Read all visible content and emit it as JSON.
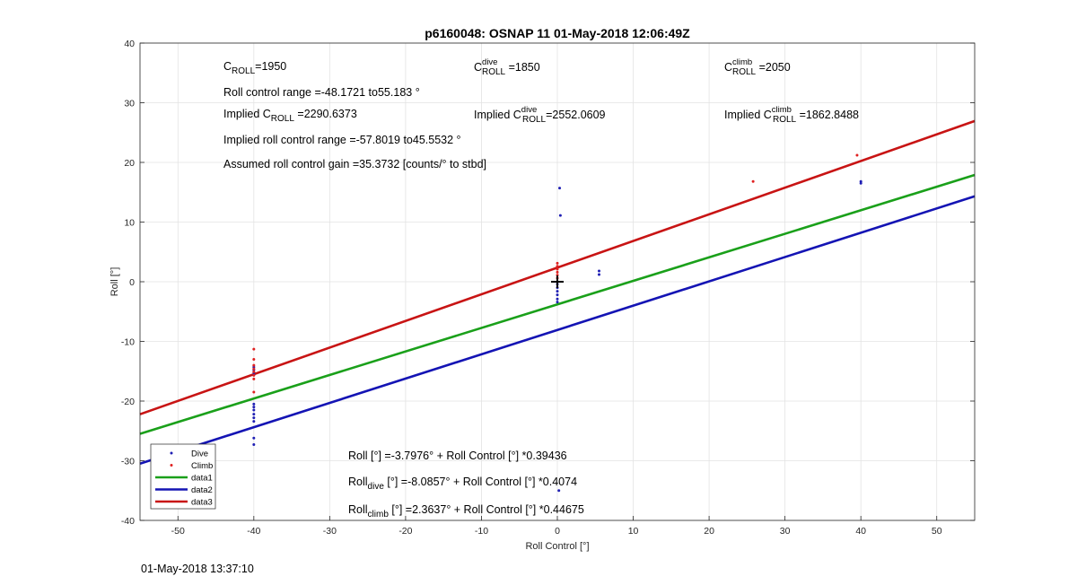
{
  "chart_data": {
    "type": "scatter",
    "title": "p6160048: OSNAP 11 01-May-2018 12:06:49Z",
    "xlabel": "Roll Control [°]",
    "ylabel": "Roll [°]",
    "xlim": [
      -55,
      55
    ],
    "ylim": [
      -40,
      40
    ],
    "xticks": [
      -50,
      -40,
      -30,
      -20,
      -10,
      0,
      10,
      20,
      30,
      40,
      50
    ],
    "yticks": [
      -40,
      -30,
      -20,
      -10,
      0,
      10,
      20,
      30,
      40
    ],
    "grid": true,
    "legend_position": "bottom-left",
    "legend": [
      "Dive",
      "Climb",
      "data1",
      "data2",
      "data3"
    ],
    "series": [
      {
        "name": "Dive",
        "kind": "points",
        "color": "#1f1fb4",
        "points": [
          [
            -40,
            -14.3
          ],
          [
            -40,
            -14.8
          ],
          [
            -40,
            -15.2
          ],
          [
            -40,
            -15.6
          ],
          [
            -40,
            -20.5
          ],
          [
            -40,
            -21
          ],
          [
            -40,
            -21.5
          ],
          [
            -40,
            -22.2
          ],
          [
            -40,
            -22.8
          ],
          [
            -40,
            -23.4
          ],
          [
            -40,
            -26.2
          ],
          [
            -40,
            -27.3
          ],
          [
            0.3,
            15.7
          ],
          [
            0.4,
            11.1
          ],
          [
            0,
            -0.4
          ],
          [
            0,
            -1
          ],
          [
            0,
            -1.6
          ],
          [
            0,
            -2.2
          ],
          [
            0,
            -2.9
          ],
          [
            0,
            -3.4
          ],
          [
            5.5,
            1.8
          ],
          [
            5.5,
            1.2
          ],
          [
            40,
            16.8
          ],
          [
            40,
            16.5
          ],
          [
            0.2,
            -35
          ]
        ]
      },
      {
        "name": "Climb",
        "kind": "points",
        "color": "#e02020",
        "points": [
          [
            -40,
            -11.3
          ],
          [
            -40,
            -13
          ],
          [
            -40,
            -14
          ],
          [
            -40,
            -14.6
          ],
          [
            -40,
            -15.1
          ],
          [
            -40,
            -15.7
          ],
          [
            -40,
            -16.3
          ],
          [
            -40,
            -18.5
          ],
          [
            0,
            0.6
          ],
          [
            0,
            1.1
          ],
          [
            0,
            1.6
          ],
          [
            0,
            2.1
          ],
          [
            0,
            2.6
          ],
          [
            0,
            3.1
          ],
          [
            25.8,
            16.8
          ],
          [
            39.5,
            21.2
          ]
        ]
      },
      {
        "name": "data1",
        "kind": "line",
        "color": "#1aa01a",
        "intercept": -3.7976,
        "slope": 0.39436
      },
      {
        "name": "data2",
        "kind": "line",
        "color": "#1414b4",
        "intercept": -8.0857,
        "slope": 0.4074
      },
      {
        "name": "data3",
        "kind": "line",
        "color": "#c81414",
        "intercept": 2.3637,
        "slope": 0.44675
      }
    ],
    "center_marker": [
      0,
      0
    ]
  },
  "annotations": {
    "croll": {
      "base": "C",
      "sub": "ROLL",
      "value": "=1950"
    },
    "croll_dive": {
      "base": "C",
      "sup": "dive",
      "sub": "ROLL",
      "value": " =1850"
    },
    "croll_climb": {
      "base": "C",
      "sup": "climb",
      "sub": "ROLL",
      "value": " =2050"
    },
    "roll_range": "Roll control range =-48.1721 to55.183 °",
    "implied_croll": {
      "prefix": "Implied C",
      "sub": "ROLL",
      "value": " =2290.6373"
    },
    "implied_croll_dive": {
      "prefix": "Implied C",
      "sup": "dive",
      "sub": "ROLL",
      "value": "=2552.0609"
    },
    "implied_croll_climb": {
      "prefix": "Implied C",
      "sup": "climb",
      "sub": "ROLL",
      "value": " =1862.8488"
    },
    "implied_range": "Implied roll control range =-57.8019 to45.5532 °",
    "gain": "Assumed roll control gain =35.3732 [counts/° to stbd]",
    "fit_all": "Roll [°] =-3.7976° + Roll Control [°] *0.39436",
    "fit_dive": {
      "prefix": "Roll",
      "sub": "dive",
      "rest": " [°] =-8.0857° + Roll Control [°] *0.4074"
    },
    "fit_climb": {
      "prefix": "Roll",
      "sub": "climb",
      "rest": " [°] =2.3637° + Roll Control [°] *0.44675"
    }
  },
  "timestamp": "01-May-2018 13:37:10"
}
